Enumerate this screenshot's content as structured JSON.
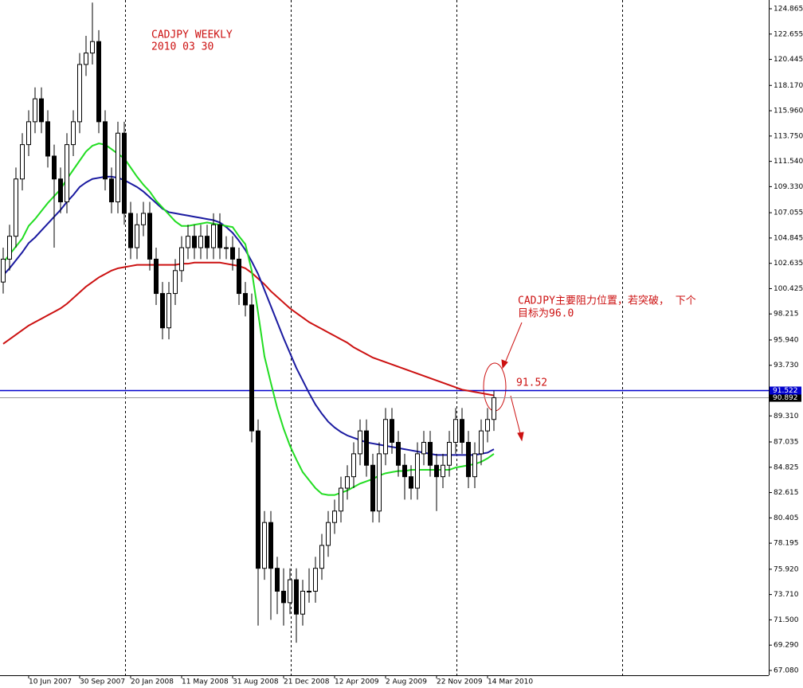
{
  "chart_data": {
    "type": "candlestick",
    "title": "CADJPY WEEKLY",
    "subtitle": "2010 03 30",
    "categories": [
      null,
      null,
      null,
      null,
      "10 Jun 2007",
      null,
      null,
      null,
      null,
      null,
      null,
      null,
      "30 Sep 2007",
      null,
      null,
      null,
      null,
      null,
      null,
      null,
      "20 Jan 2008",
      null,
      null,
      null,
      null,
      null,
      null,
      null,
      "11 May 2008",
      null,
      null,
      null,
      null,
      null,
      null,
      null,
      "31 Aug 2008",
      null,
      null,
      null,
      null,
      null,
      null,
      null,
      "21 Dec 2008",
      null,
      null,
      null,
      null,
      null,
      null,
      null,
      "12 Apr 2009",
      null,
      null,
      null,
      null,
      null,
      null,
      null,
      "2 Aug 2009",
      null,
      null,
      null,
      null,
      null,
      null,
      null,
      "22 Nov 2009",
      null,
      null,
      null,
      null,
      null,
      null,
      null,
      "14 Mar 2010",
      null
    ],
    "open": [
      101,
      103,
      105,
      110,
      113,
      115,
      117,
      115,
      112,
      110,
      108,
      113,
      115,
      120,
      121,
      122,
      115,
      110,
      108,
      114,
      107,
      104,
      106,
      107,
      103,
      100,
      97,
      100,
      102,
      104,
      105,
      104,
      105,
      104,
      106,
      104,
      104,
      103,
      100,
      99,
      88,
      76,
      80,
      76,
      74,
      73,
      75,
      72,
      74,
      74,
      76,
      78,
      80,
      81,
      83,
      84,
      86,
      88,
      85,
      81,
      86,
      89,
      87,
      85,
      84,
      83,
      86,
      87,
      85,
      84,
      85,
      87,
      89,
      87,
      84,
      86,
      88,
      89
    ],
    "high": [
      104,
      106,
      111,
      114,
      116,
      118,
      118,
      116,
      113,
      111,
      114,
      116,
      121,
      122.5,
      125.4,
      123,
      116,
      111,
      115,
      115,
      108,
      107,
      108,
      108,
      104,
      101,
      101,
      103,
      105,
      106,
      106,
      106,
      106,
      107,
      107,
      105,
      105,
      104,
      101,
      100,
      89,
      81,
      81,
      77,
      76,
      76,
      76,
      75,
      76,
      77,
      79,
      81,
      82,
      84,
      85,
      87,
      89,
      89,
      86,
      87,
      90,
      90,
      88,
      86,
      85,
      87,
      88,
      88,
      86,
      86,
      88,
      90,
      90,
      88,
      87,
      89,
      90,
      91.5
    ],
    "low": [
      100,
      102,
      104,
      109,
      112,
      114,
      114,
      111,
      104,
      107,
      107,
      112,
      114,
      119,
      120,
      114,
      109,
      107,
      107,
      106,
      103,
      103,
      105,
      102,
      99,
      96,
      96,
      99,
      101,
      103,
      103,
      103,
      103,
      103,
      103,
      103,
      102,
      99,
      98,
      87,
      71,
      75,
      71.5,
      72,
      71,
      72,
      69.5,
      71,
      73,
      73,
      75,
      77,
      79,
      80,
      82,
      83,
      85,
      84,
      80,
      80,
      85,
      86,
      84,
      82,
      82,
      82,
      85,
      84,
      81,
      83,
      84,
      86,
      86,
      83,
      83,
      85,
      87,
      88
    ],
    "close": [
      103,
      105,
      110,
      113,
      115,
      117,
      115,
      112,
      110,
      108,
      113,
      115,
      120,
      121,
      122,
      115,
      110,
      108,
      114,
      107,
      104,
      106,
      107,
      103,
      100,
      97,
      100,
      102,
      104,
      105,
      104,
      105,
      104,
      106,
      104,
      104,
      103,
      100,
      99,
      88,
      76,
      80,
      76,
      74,
      73,
      75,
      72,
      74,
      74,
      76,
      78,
      80,
      81,
      83,
      84,
      86,
      88,
      85,
      81,
      86,
      89,
      87,
      85,
      84,
      83,
      86,
      87,
      85,
      84,
      85,
      87,
      89,
      87,
      84,
      86,
      88,
      89,
      90.9
    ],
    "lines": [
      {
        "color": "#cc1111",
        "values": [
          95.6,
          96.0,
          96.4,
          96.8,
          97.2,
          97.5,
          97.8,
          98.1,
          98.4,
          98.7,
          99.1,
          99.6,
          100.1,
          100.6,
          101.0,
          101.4,
          101.7,
          102.0,
          102.2,
          102.3,
          102.4,
          102.5,
          102.5,
          102.5,
          102.5,
          102.5,
          102.5,
          102.5,
          102.6,
          102.6,
          102.7,
          102.7,
          102.7,
          102.7,
          102.7,
          102.6,
          102.5,
          102.4,
          102.2,
          101.8,
          101.3,
          100.8,
          100.2,
          99.7,
          99.2,
          98.7,
          98.3,
          97.9,
          97.5,
          97.2,
          96.9,
          96.6,
          96.3,
          96.0,
          95.7,
          95.3,
          95.0,
          94.7,
          94.4,
          94.2,
          94.0,
          93.8,
          93.6,
          93.4,
          93.2,
          93.0,
          92.8,
          92.6,
          92.4,
          92.2,
          92.0,
          91.8,
          91.6,
          91.5,
          91.4,
          91.3,
          91.2,
          91.1
        ]
      },
      {
        "color": "#1a1aa0",
        "values": [
          101.6,
          102.2,
          102.9,
          103.6,
          104.4,
          104.9,
          105.5,
          106.1,
          106.7,
          107.3,
          108.0,
          108.6,
          109.3,
          109.7,
          110.0,
          110.1,
          110.2,
          110.2,
          110.1,
          109.9,
          109.6,
          109.3,
          108.9,
          108.4,
          107.9,
          107.4,
          107.1,
          107.0,
          106.9,
          106.8,
          106.7,
          106.6,
          106.5,
          106.4,
          106.2,
          105.8,
          105.3,
          104.6,
          103.8,
          102.8,
          101.7,
          100.3,
          98.9,
          97.5,
          96.1,
          94.8,
          93.5,
          92.4,
          91.3,
          90.3,
          89.5,
          88.8,
          88.3,
          87.9,
          87.6,
          87.4,
          87.2,
          87.0,
          86.9,
          86.8,
          86.7,
          86.6,
          86.5,
          86.4,
          86.3,
          86.2,
          86.1,
          86.0,
          85.9,
          85.9,
          85.9,
          85.9,
          85.9,
          85.9,
          85.9,
          86.0,
          86.1,
          86.4
        ]
      },
      {
        "color": "#22dd22",
        "values": [
          102.7,
          103.4,
          104.1,
          104.8,
          105.9,
          106.5,
          107.2,
          107.9,
          108.5,
          109.1,
          110.0,
          110.8,
          111.6,
          112.4,
          112.9,
          113.1,
          113.0,
          112.6,
          112.2,
          111.8,
          111.0,
          110.2,
          109.5,
          108.9,
          108.1,
          107.5,
          106.9,
          106.3,
          105.9,
          105.9,
          106.0,
          106.1,
          106.2,
          106.1,
          106.0,
          105.9,
          105.8,
          105.0,
          104.3,
          102.0,
          98.3,
          94.5,
          92.2,
          90.0,
          88.2,
          86.7,
          85.5,
          84.4,
          83.7,
          83.0,
          82.5,
          82.4,
          82.4,
          82.6,
          82.8,
          83.1,
          83.4,
          83.6,
          83.8,
          84.1,
          84.3,
          84.4,
          84.5,
          84.5,
          84.6,
          84.6,
          84.6,
          84.6,
          84.6,
          84.6,
          84.6,
          84.8,
          84.9,
          85.0,
          85.1,
          85.3,
          85.6,
          86.0
        ]
      }
    ],
    "hline": {
      "value": 91.522,
      "label": "91.522",
      "color": "#0000cc"
    },
    "last_price": {
      "value": 90.892,
      "label": "90.892"
    },
    "annotations": [
      "CADJPY主要阻力位置，若突破， 下个",
      "目标为96.0",
      "91.52"
    ],
    "ylim": [
      66.66,
      125.63
    ],
    "yticks": [
      124.865,
      122.655,
      120.445,
      {
        "value": 118.17,
        "label": "118.170"
      },
      {
        "value": 115.96,
        "label": "115.960"
      },
      {
        "value": 113.75,
        "label": "113.750"
      },
      {
        "value": 111.54,
        "label": "111.540"
      },
      {
        "value": 109.33,
        "label": "109.330"
      },
      107.055,
      104.845,
      102.635,
      100.425,
      98.215,
      {
        "value": 95.94,
        "label": "95.940"
      },
      {
        "value": 93.73,
        "label": "93.730"
      },
      {
        "value": 89.31,
        "label": "89.310"
      },
      87.035,
      84.825,
      82.615,
      80.405,
      78.195,
      {
        "value": 75.92,
        "label": "75.920"
      },
      {
        "value": 73.71,
        "label": "73.710"
      },
      {
        "value": 71.5,
        "label": "71.500"
      },
      {
        "value": 69.29,
        "label": "69.290"
      },
      {
        "value": 67.08,
        "label": "67.080"
      }
    ]
  }
}
